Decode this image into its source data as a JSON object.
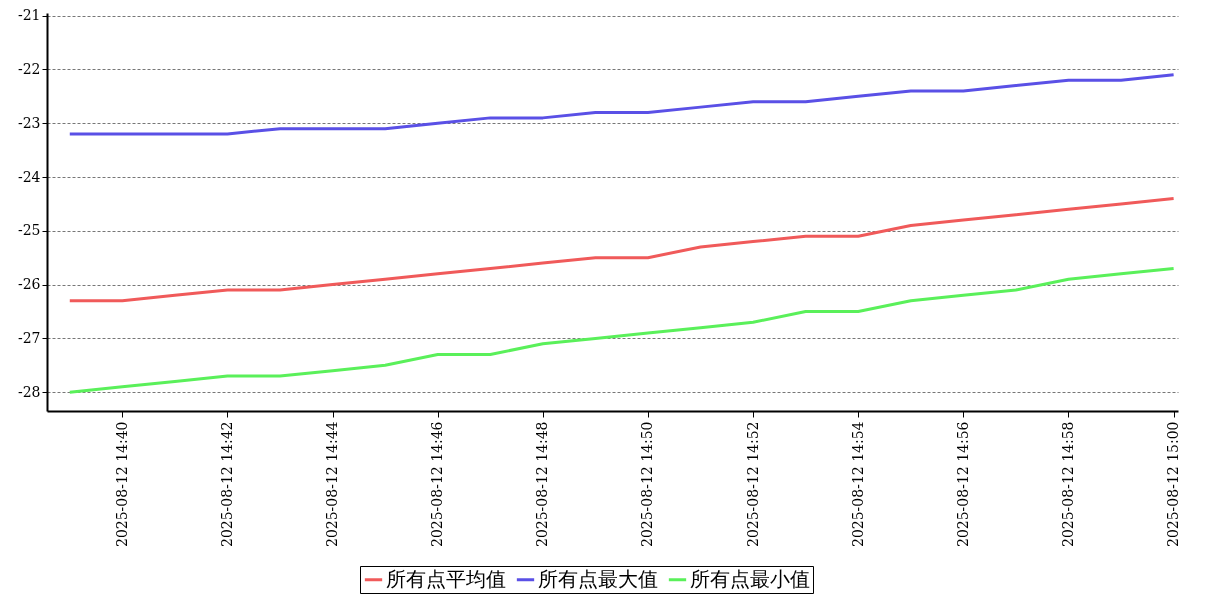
{
  "chart_data": {
    "type": "line",
    "x": [
      "2025-08-12T14:39",
      "2025-08-12T14:40",
      "2025-08-12T14:41",
      "2025-08-12T14:42",
      "2025-08-12T14:43",
      "2025-08-12T14:44",
      "2025-08-12T14:45",
      "2025-08-12T14:46",
      "2025-08-12T14:47",
      "2025-08-12T14:48",
      "2025-08-12T14:49",
      "2025-08-12T14:50",
      "2025-08-12T14:51",
      "2025-08-12T14:52",
      "2025-08-12T14:53",
      "2025-08-12T14:54",
      "2025-08-12T14:55",
      "2025-08-12T14:56",
      "2025-08-12T14:57",
      "2025-08-12T14:58",
      "2025-08-12T14:59",
      "2025-08-12T15:00"
    ],
    "series": [
      {
        "name": "所有点平均值",
        "color": "#f05a5a",
        "values": [
          -26.3,
          -26.3,
          -26.2,
          -26.1,
          -26.1,
          -26.0,
          -25.9,
          -25.8,
          -25.7,
          -25.6,
          -25.5,
          -25.5,
          -25.3,
          -25.2,
          -25.1,
          -25.1,
          -24.9,
          -24.8,
          -24.7,
          -24.6,
          -24.5,
          -24.4
        ]
      },
      {
        "name": "所有点最大值",
        "color": "#5a50e6",
        "values": [
          -23.2,
          -23.2,
          -23.2,
          -23.2,
          -23.1,
          -23.1,
          -23.1,
          -23.0,
          -22.9,
          -22.9,
          -22.8,
          -22.8,
          -22.7,
          -22.6,
          -22.6,
          -22.5,
          -22.4,
          -22.4,
          -22.3,
          -22.2,
          -22.2,
          -22.1
        ]
      },
      {
        "name": "所有点最小值",
        "color": "#5af05a",
        "values": [
          -28.0,
          -27.9,
          -27.8,
          -27.7,
          -27.7,
          -27.6,
          -27.5,
          -27.3,
          -27.3,
          -27.1,
          -27.0,
          -26.9,
          -26.8,
          -26.7,
          -26.5,
          -26.5,
          -26.3,
          -26.2,
          -26.1,
          -25.9,
          -25.8,
          -25.7
        ]
      }
    ],
    "xlim": [
      "2025-08-12T14:38:34",
      "2025-08-12T15:00:05"
    ],
    "xticks": [
      {
        "value": "2025-08-12T14:40",
        "label": "2025-08-12 14:40"
      },
      {
        "value": "2025-08-12T14:42",
        "label": "2025-08-12 14:42"
      },
      {
        "value": "2025-08-12T14:44",
        "label": "2025-08-12 14:44"
      },
      {
        "value": "2025-08-12T14:46",
        "label": "2025-08-12 14:46"
      },
      {
        "value": "2025-08-12T14:48",
        "label": "2025-08-12 14:48"
      },
      {
        "value": "2025-08-12T14:50",
        "label": "2025-08-12 14:50"
      },
      {
        "value": "2025-08-12T14:52",
        "label": "2025-08-12 14:52"
      },
      {
        "value": "2025-08-12T14:54",
        "label": "2025-08-12 14:54"
      },
      {
        "value": "2025-08-12T14:56",
        "label": "2025-08-12 14:56"
      },
      {
        "value": "2025-08-12T14:58",
        "label": "2025-08-12 14:58"
      },
      {
        "value": "2025-08-12T15:00",
        "label": "2025-08-12 15:00"
      }
    ],
    "ylim": [
      -28.35,
      -20.95
    ],
    "yticks": [
      -28,
      -27,
      -26,
      -25,
      -24,
      -23,
      -22,
      -21
    ],
    "grid": "y",
    "legend": "bottom",
    "marker": "none",
    "line_style": "solid"
  }
}
